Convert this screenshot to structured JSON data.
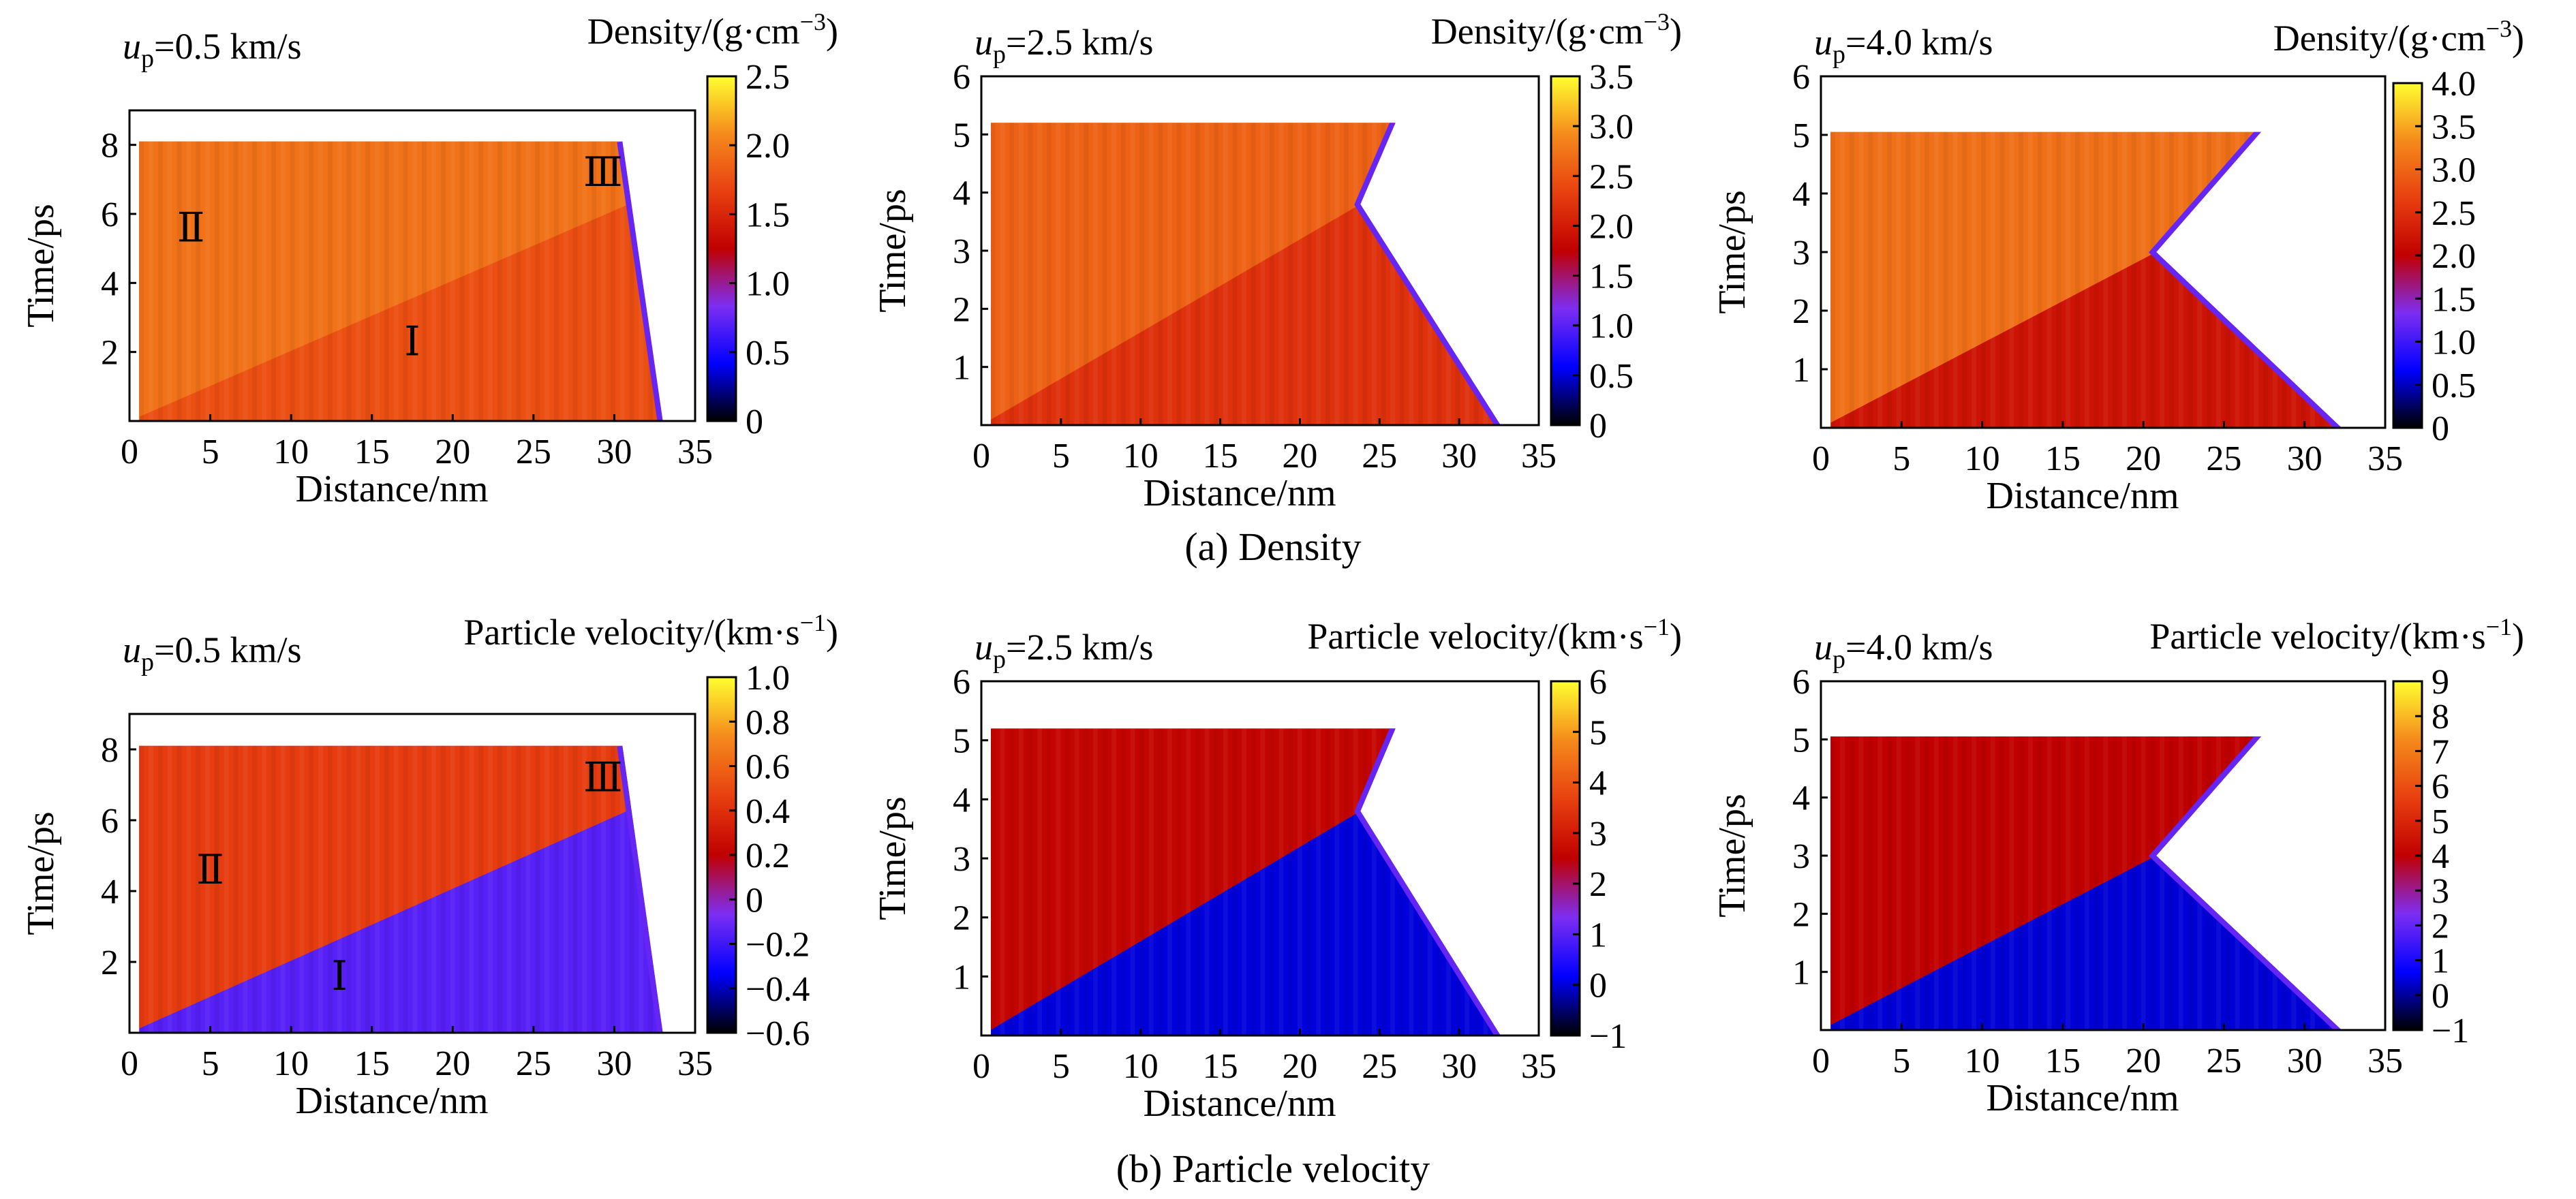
{
  "figure": {
    "caption_a": "(a) Density",
    "caption_b": "(b) Particle velocity"
  },
  "chart_data": [
    {
      "type": "heatmap",
      "up_value": "=0.5 km/s",
      "cb_title": "Density/(g·cm",
      "cb_unit_exp": "−3",
      "cb_unit_close": ")",
      "xlabel": "Distance/nm",
      "ylabel": "Time/ps",
      "xlim": [
        0,
        35
      ],
      "ylim": [
        0,
        9
      ],
      "x_ticks": [
        "0",
        "5",
        "10",
        "15",
        "20",
        "25",
        "30",
        "35"
      ],
      "y_ticks": [
        "2",
        "4",
        "6",
        "8"
      ],
      "y_tick_values": [
        2,
        4,
        6,
        8
      ],
      "cb_range": [
        0,
        2.5
      ],
      "cb_ticks": [
        "0",
        "0.5",
        "1.0",
        "1.5",
        "2.0",
        "2.5"
      ],
      "cb_tick_values": [
        0,
        0.5,
        1.0,
        1.5,
        2.0,
        2.5
      ],
      "colormap": [
        "#000000",
        "#0000ff",
        "#7d2ef2",
        "#c00000",
        "#e84010",
        "#f58a1c",
        "#ffff30"
      ],
      "data_region": {
        "t_max": 8.1,
        "left_x": 0.6,
        "surface_top_x": 30.5,
        "surface_bottom_x": 33.0,
        "wave_top_x": 30.5,
        "wave_top_t": 6.2,
        "wave_origin_t": 0
      },
      "region_values": {
        "compressed": 1.95,
        "uncompressed": 1.75,
        "front": 0.9
      },
      "regions": [
        {
          "label": "Ⅰ",
          "x": 17.5,
          "t": 2.3
        },
        {
          "label": "Ⅱ",
          "x": 3.8,
          "t": 5.6
        },
        {
          "label": "Ⅲ",
          "x": 29.3,
          "t": 7.2
        }
      ]
    },
    {
      "type": "heatmap",
      "up_value": "=2.5 km/s",
      "cb_title": "Density/(g·cm",
      "cb_unit_exp": "−3",
      "cb_unit_close": ")",
      "xlabel": "Distance/nm",
      "ylabel": "Time/ps",
      "xlim": [
        0,
        35
      ],
      "ylim": [
        0,
        6
      ],
      "x_ticks": [
        "0",
        "5",
        "10",
        "15",
        "20",
        "25",
        "30",
        "35"
      ],
      "y_ticks": [
        "1",
        "2",
        "3",
        "4",
        "5",
        "6"
      ],
      "y_tick_values": [
        1,
        2,
        3,
        4,
        5,
        6
      ],
      "cb_range": [
        0,
        3.5
      ],
      "cb_ticks": [
        "0",
        "0.5",
        "1.0",
        "1.5",
        "2.0",
        "2.5",
        "3.0",
        "3.5"
      ],
      "cb_tick_values": [
        0,
        0.5,
        1.0,
        1.5,
        2.0,
        2.5,
        3.0,
        3.5
      ],
      "colormap": [
        "#000000",
        "#0000ff",
        "#7d2ef2",
        "#c00000",
        "#e84010",
        "#f58a1c",
        "#ffff30"
      ],
      "data_region": {
        "t_max": 5.2,
        "left_x": 0.6,
        "surface_top_x": 26.0,
        "surface_mid_x": 23.8,
        "surface_mid_t": 3.8,
        "surface_bottom_x": 32.6,
        "wave_top_x": 23.8,
        "wave_top_t": 3.8
      },
      "region_values": {
        "compressed": 2.6,
        "uncompressed": 2.2
      }
    },
    {
      "type": "heatmap",
      "up_value": "=4.0 km/s",
      "cb_title": "Density/(g·cm",
      "cb_unit_exp": "−3",
      "cb_unit_close": ")",
      "xlabel": "Distance/nm",
      "ylabel": "Time/ps",
      "xlim": [
        0,
        35
      ],
      "ylim": [
        0,
        6
      ],
      "x_ticks": [
        "0",
        "5",
        "10",
        "15",
        "20",
        "25",
        "30",
        "35"
      ],
      "y_ticks": [
        "1",
        "2",
        "3",
        "4",
        "5",
        "6"
      ],
      "y_tick_values": [
        1,
        2,
        3,
        4,
        5,
        6
      ],
      "cb_range": [
        0,
        4.0
      ],
      "cb_ticks": [
        "0",
        "0.5",
        "1.0",
        "1.5",
        "2.0",
        "2.5",
        "3.0",
        "3.5",
        "4.0"
      ],
      "cb_tick_values": [
        0,
        0.5,
        1.0,
        1.5,
        2.0,
        2.5,
        3.0,
        3.5,
        4.0
      ],
      "colormap": [
        "#000000",
        "#0000ff",
        "#7d2ef2",
        "#c00000",
        "#e84010",
        "#f58a1c",
        "#ffff30"
      ],
      "data_region": {
        "t_max": 5.05,
        "left_x": 0.6,
        "surface_top_x": 27.3,
        "surface_mid_x": 20.8,
        "surface_mid_t": 3.0,
        "surface_bottom_x": 32.3,
        "wave_top_x": 20.8,
        "wave_top_t": 3.0
      },
      "region_values": {
        "compressed": 3.1,
        "uncompressed": 2.2
      }
    },
    {
      "type": "heatmap",
      "up_value": "=0.5 km/s",
      "cb_title": "Particle velocity/(km·s",
      "cb_unit_exp": "−1",
      "cb_unit_close": ")",
      "xlabel": "Distance/nm",
      "ylabel": "Time/ps",
      "xlim": [
        0,
        35
      ],
      "ylim": [
        0,
        9
      ],
      "x_ticks": [
        "0",
        "5",
        "10",
        "15",
        "20",
        "25",
        "30",
        "35"
      ],
      "y_ticks": [
        "2",
        "4",
        "6",
        "8"
      ],
      "y_tick_values": [
        2,
        4,
        6,
        8
      ],
      "cb_range": [
        -0.6,
        1.0
      ],
      "cb_ticks": [
        "−0.6",
        "−0.4",
        "−0.2",
        "0",
        "0.2",
        "0.4",
        "0.6",
        "0.8",
        "1.0"
      ],
      "cb_tick_values": [
        -0.6,
        -0.4,
        -0.2,
        0,
        0.2,
        0.4,
        0.6,
        0.8,
        1.0
      ],
      "colormap": [
        "#000000",
        "#0000ff",
        "#7d2ef2",
        "#c00000",
        "#e84010",
        "#f58a1c",
        "#ffff30"
      ],
      "data_region": {
        "t_max": 8.1,
        "left_x": 0.6,
        "surface_top_x": 30.5,
        "surface_bottom_x": 33.0,
        "wave_top_x": 30.5,
        "wave_top_t": 6.2,
        "wave_origin_t": 0
      },
      "region_values": {
        "compressed": 0.45,
        "uncompressed": -0.15
      },
      "regions": [
        {
          "label": "Ⅰ",
          "x": 13.0,
          "t": 1.6
        },
        {
          "label": "Ⅱ",
          "x": 5.0,
          "t": 4.6
        },
        {
          "label": "Ⅲ",
          "x": 29.3,
          "t": 7.2
        }
      ]
    },
    {
      "type": "heatmap",
      "up_value": "=2.5 km/s",
      "cb_title": "Particle velocity/(km·s",
      "cb_unit_exp": "−1",
      "cb_unit_close": ")",
      "xlabel": "Distance/nm",
      "ylabel": "Time/ps",
      "xlim": [
        0,
        35
      ],
      "ylim": [
        0,
        6
      ],
      "x_ticks": [
        "0",
        "5",
        "10",
        "15",
        "20",
        "25",
        "30",
        "35"
      ],
      "y_ticks": [
        "1",
        "2",
        "3",
        "4",
        "5",
        "6"
      ],
      "y_tick_values": [
        1,
        2,
        3,
        4,
        5,
        6
      ],
      "cb_range": [
        -1,
        6
      ],
      "cb_ticks": [
        "−1",
        "0",
        "1",
        "2",
        "3",
        "4",
        "5",
        "6"
      ],
      "cb_tick_values": [
        -1,
        0,
        1,
        2,
        3,
        4,
        5,
        6
      ],
      "colormap": [
        "#000000",
        "#0000ff",
        "#7d2ef2",
        "#c00000",
        "#e84010",
        "#f58a1c",
        "#ffff30"
      ],
      "data_region": {
        "t_max": 5.2,
        "left_x": 0.6,
        "surface_top_x": 26.0,
        "surface_mid_x": 23.8,
        "surface_mid_t": 3.8,
        "surface_bottom_x": 32.6,
        "wave_top_x": 23.8,
        "wave_top_t": 3.8
      },
      "region_values": {
        "compressed": 2.6,
        "uncompressed": 0.0
      }
    },
    {
      "type": "heatmap",
      "up_value": "=4.0 km/s",
      "cb_title": "Particle velocity/(km·s",
      "cb_unit_exp": "−1",
      "cb_unit_close": ")",
      "xlabel": "Distance/nm",
      "ylabel": "Time/ps",
      "xlim": [
        0,
        35
      ],
      "ylim": [
        0,
        6
      ],
      "x_ticks": [
        "0",
        "5",
        "10",
        "15",
        "20",
        "25",
        "30",
        "35"
      ],
      "y_ticks": [
        "1",
        "2",
        "3",
        "4",
        "5",
        "6"
      ],
      "y_tick_values": [
        1,
        2,
        3,
        4,
        5,
        6
      ],
      "cb_range": [
        -1,
        9
      ],
      "cb_ticks": [
        "−1",
        "0",
        "1",
        "2",
        "3",
        "4",
        "5",
        "6",
        "7",
        "8",
        "9"
      ],
      "cb_tick_values": [
        -1,
        0,
        1,
        2,
        3,
        4,
        5,
        6,
        7,
        8,
        9
      ],
      "colormap": [
        "#000000",
        "#0000ff",
        "#7d2ef2",
        "#c00000",
        "#e84010",
        "#f58a1c",
        "#ffff30"
      ],
      "data_region": {
        "t_max": 5.05,
        "left_x": 0.6,
        "surface_top_x": 27.3,
        "surface_mid_x": 20.8,
        "surface_mid_t": 3.0,
        "surface_bottom_x": 32.3,
        "wave_top_x": 20.8,
        "wave_top_t": 3.0
      },
      "region_values": {
        "compressed": 4.0,
        "uncompressed": 0.4
      }
    }
  ]
}
